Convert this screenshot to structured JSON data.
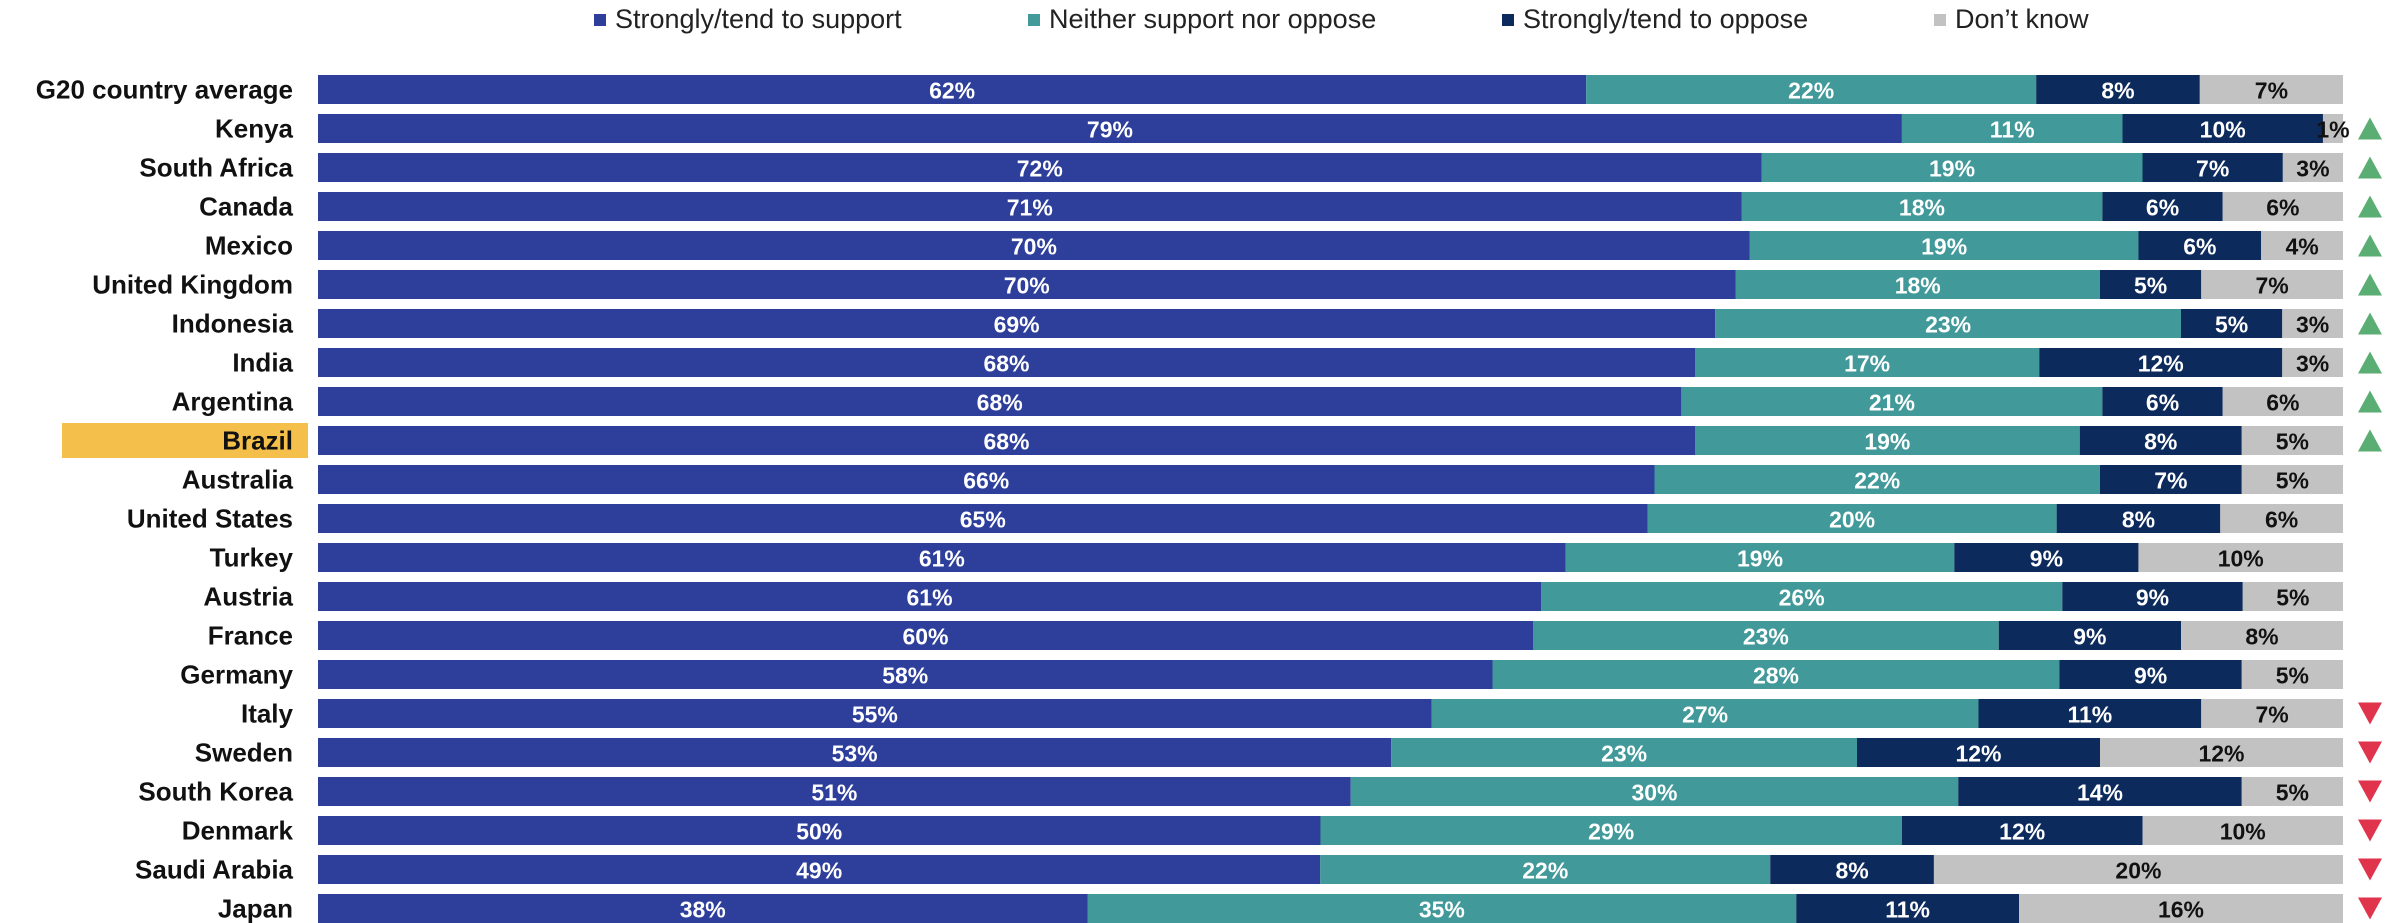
{
  "chart_data": {
    "type": "bar",
    "orientation": "horizontal-stacked-100",
    "title": "",
    "xlabel": "",
    "ylabel": "",
    "xlim": [
      0,
      100
    ],
    "legend_placement": "top",
    "grid": false,
    "categories": [
      "G20 country average",
      "Kenya",
      "South Africa",
      "Canada",
      "Mexico",
      "United Kingdom",
      "Indonesia",
      "India",
      "Argentina",
      "Brazil",
      "Australia",
      "United States",
      "Turkey",
      "Austria",
      "France",
      "Germany",
      "Italy",
      "Sweden",
      "South Korea",
      "Denmark",
      "Saudi Arabia",
      "Japan"
    ],
    "highlighted_category": "Brazil",
    "highlight_color": "#F4C04B",
    "series": [
      {
        "name": "Strongly/tend to support",
        "color": "#2E3E9B",
        "label_color": "#ffffff",
        "values": [
          62,
          79,
          72,
          71,
          70,
          70,
          69,
          68,
          68,
          68,
          66,
          65,
          61,
          61,
          60,
          58,
          55,
          53,
          51,
          50,
          49,
          38
        ]
      },
      {
        "name": "Neither support nor oppose",
        "color": "#41999A",
        "label_color": "#ffffff",
        "values": [
          22,
          11,
          19,
          18,
          19,
          18,
          23,
          17,
          21,
          19,
          22,
          20,
          19,
          26,
          23,
          28,
          27,
          23,
          30,
          29,
          22,
          35
        ]
      },
      {
        "name": "Strongly/tend to oppose",
        "color": "#0D2A5C",
        "label_color": "#ffffff",
        "values": [
          8,
          10,
          7,
          6,
          6,
          5,
          5,
          12,
          6,
          8,
          7,
          8,
          9,
          9,
          9,
          9,
          11,
          12,
          14,
          12,
          8,
          11
        ]
      },
      {
        "name": "Don’t know",
        "color": "#C2C2C2",
        "label_color": "#111111",
        "values": [
          7,
          1,
          3,
          6,
          4,
          7,
          3,
          3,
          6,
          5,
          5,
          6,
          10,
          5,
          8,
          5,
          7,
          12,
          5,
          10,
          20,
          16
        ]
      }
    ],
    "data_labels": [
      [
        "62%",
        "22%",
        "8%",
        "7%"
      ],
      [
        "79%",
        "11%",
        "10%",
        "1%"
      ],
      [
        "72%",
        "19%",
        "7%",
        "3%"
      ],
      [
        "71%",
        "18%",
        "6%",
        "6%"
      ],
      [
        "70%",
        "19%",
        "6%",
        "4%"
      ],
      [
        "70%",
        "18%",
        "5%",
        "7%"
      ],
      [
        "69%",
        "23%",
        "5%",
        "3%"
      ],
      [
        "68%",
        "17%",
        "12%",
        "3%"
      ],
      [
        "68%",
        "21%",
        "6%",
        "6%"
      ],
      [
        "68%",
        "19%",
        "8%",
        "5%"
      ],
      [
        "66%",
        "22%",
        "7%",
        "5%"
      ],
      [
        "65%",
        "20%",
        "8%",
        "6%"
      ],
      [
        "61%",
        "19%",
        "9%",
        "10%"
      ],
      [
        "61%",
        "26%",
        "9%",
        "5%"
      ],
      [
        "60%",
        "23%",
        "9%",
        "8%"
      ],
      [
        "58%",
        "28%",
        "9%",
        "5%"
      ],
      [
        "55%",
        "27%",
        "11%",
        "7%"
      ],
      [
        "53%",
        "23%",
        "12%",
        "12%"
      ],
      [
        "51%",
        "30%",
        "14%",
        "5%"
      ],
      [
        "50%",
        "29%",
        "12%",
        "10%"
      ],
      [
        "49%",
        "22%",
        "8%",
        "20%"
      ],
      [
        "38%",
        "35%",
        "11%",
        "16%"
      ]
    ],
    "indicators": [
      "none",
      "up",
      "up",
      "up",
      "up",
      "up",
      "up",
      "up",
      "up",
      "up",
      "none",
      "none",
      "none",
      "none",
      "none",
      "none",
      "down",
      "down",
      "down",
      "down",
      "down",
      "down"
    ],
    "indicator_colors": {
      "up": "#5BAE73",
      "down": "#E0334C"
    }
  }
}
